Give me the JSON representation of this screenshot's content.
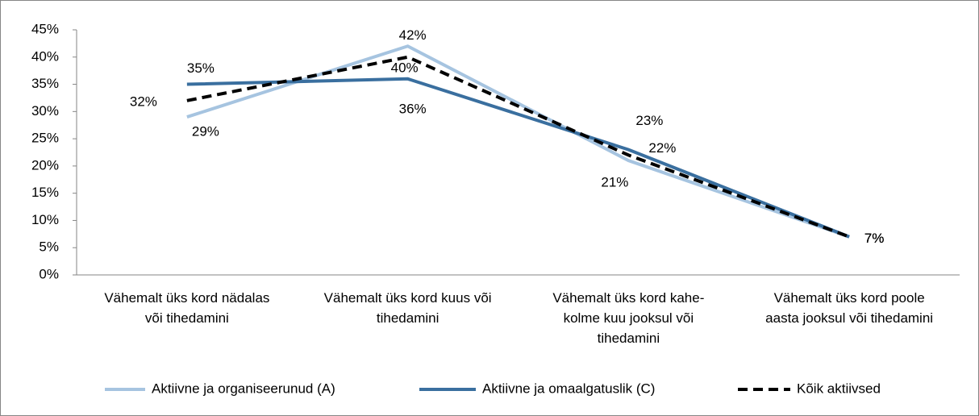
{
  "chart_data": {
    "type": "line",
    "categories": [
      "Vähemalt üks kord nädalas\nvõi tihedamini",
      "Vähemalt üks kord kuus või\ntihedamini",
      "Vähemalt üks kord kahe-\nkolme kuu jooksul või\ntihedamini",
      "Vähemalt üks kord poole\naasta jooksul või tihedamini"
    ],
    "series": [
      {
        "name": "Aktiivne ja organiseerunud (A)",
        "color": "#a6c4e0",
        "dash": false,
        "values": [
          29,
          42,
          21,
          7
        ],
        "value_labels": [
          "29%",
          "42%",
          "21%",
          "7%"
        ]
      },
      {
        "name": "Aktiivne ja omaalgatuslik (C)",
        "color": "#3a6f9f",
        "dash": false,
        "values": [
          35,
          36,
          23,
          7
        ],
        "value_labels": [
          "35%",
          "36%",
          "23%",
          "7%"
        ]
      },
      {
        "name": "Kõik aktiivsed",
        "color": "#000000",
        "dash": true,
        "values": [
          32,
          40,
          22,
          7
        ],
        "value_labels": [
          "32%",
          "40%",
          "22%",
          "7%"
        ]
      }
    ],
    "ylim": [
      0,
      45
    ],
    "yticks": [
      {
        "value": 0,
        "label": "0%"
      },
      {
        "value": 5,
        "label": "5%"
      },
      {
        "value": 10,
        "label": "10%"
      },
      {
        "value": 15,
        "label": "15%"
      },
      {
        "value": 20,
        "label": "20%"
      },
      {
        "value": 25,
        "label": "25%"
      },
      {
        "value": 30,
        "label": "30%"
      },
      {
        "value": 35,
        "label": "35%"
      },
      {
        "value": 40,
        "label": "40%"
      },
      {
        "value": 45,
        "label": "45%"
      }
    ],
    "grid": false,
    "legend": "bottom"
  }
}
